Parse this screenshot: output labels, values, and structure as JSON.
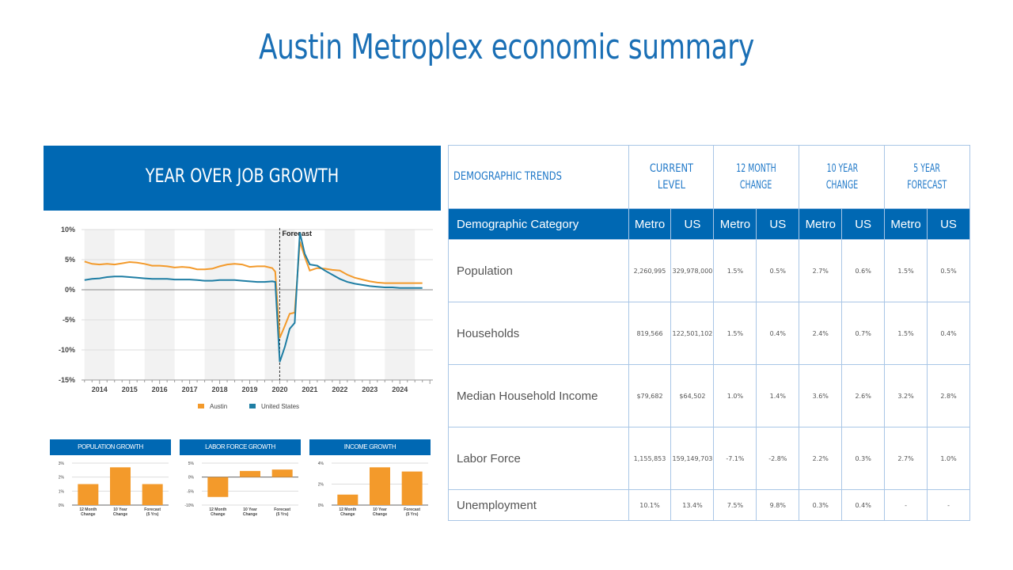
{
  "title": "Austin Metroplex economic summary",
  "chart_banner": "YEAR OVER JOB GROWTH",
  "chart_data": [
    {
      "type": "line",
      "title": "",
      "x": [
        2013.5,
        2013.75,
        2014,
        2014.25,
        2014.5,
        2014.75,
        2015,
        2015.25,
        2015.5,
        2015.75,
        2016,
        2016.25,
        2016.5,
        2016.75,
        2017,
        2017.25,
        2017.5,
        2017.75,
        2018,
        2018.25,
        2018.5,
        2018.75,
        2019,
        2019.25,
        2019.5,
        2019.75,
        2019.85,
        2020,
        2020.17,
        2020.33,
        2020.5,
        2020.67,
        2020.83,
        2021,
        2021.25,
        2021.5,
        2021.75,
        2022,
        2022.25,
        2022.5,
        2022.75,
        2023,
        2023.25,
        2023.5,
        2023.75,
        2024,
        2024.25,
        2024.5,
        2024.75
      ],
      "series": [
        {
          "name": "Austin",
          "color": "#f39a2b",
          "values": [
            4.7,
            4.3,
            4.2,
            4.3,
            4.2,
            4.4,
            4.6,
            4.5,
            4.3,
            4.0,
            4.0,
            3.9,
            3.7,
            3.8,
            3.7,
            3.4,
            3.4,
            3.5,
            3.9,
            4.2,
            4.3,
            4.2,
            3.8,
            3.9,
            3.9,
            3.6,
            3.0,
            -8.0,
            -6.0,
            -4.0,
            -3.8,
            8.0,
            5.5,
            3.2,
            3.6,
            3.5,
            3.3,
            3.2,
            2.5,
            2.0,
            1.7,
            1.4,
            1.2,
            1.1,
            1.1,
            1.1,
            1.1,
            1.1,
            1.1
          ]
        },
        {
          "name": "United States",
          "color": "#1f7ea4",
          "values": [
            1.6,
            1.8,
            1.9,
            2.1,
            2.2,
            2.2,
            2.1,
            2.0,
            1.9,
            1.8,
            1.8,
            1.8,
            1.7,
            1.7,
            1.7,
            1.6,
            1.5,
            1.5,
            1.6,
            1.6,
            1.6,
            1.5,
            1.4,
            1.3,
            1.3,
            1.4,
            1.3,
            -12.0,
            -9.5,
            -6.5,
            -5.5,
            9.5,
            6.0,
            4.2,
            4.0,
            3.2,
            2.5,
            1.8,
            1.3,
            1.0,
            0.8,
            0.6,
            0.5,
            0.4,
            0.4,
            0.3,
            0.3,
            0.3,
            0.3
          ]
        }
      ],
      "ylim": [
        -15,
        10
      ],
      "yticks": [
        "10%",
        "5%",
        "0%",
        "-5%",
        "-10%",
        "-15%"
      ],
      "ytick_values": [
        10,
        5,
        0,
        -5,
        -10,
        -15
      ],
      "xticks": [
        "2014",
        "2015",
        "2016",
        "2017",
        "2018",
        "2019",
        "2020",
        "2021",
        "2022",
        "2023",
        "2024"
      ],
      "xtick_values": [
        2014,
        2015,
        2016,
        2017,
        2018,
        2019,
        2020,
        2021,
        2022,
        2023,
        2024
      ],
      "xlim": [
        2013.4,
        2025.1
      ],
      "annotation": "Forecast",
      "annotation_x": 2020,
      "legend": [
        "Austin",
        "United States"
      ]
    },
    {
      "type": "bar",
      "title": "POPULATION GROWTH",
      "categories": [
        [
          "12 Month",
          "Change"
        ],
        [
          "10 Year",
          "Change"
        ],
        [
          "Forecast",
          "(5 Yrs)"
        ]
      ],
      "values": [
        1.5,
        2.7,
        1.5
      ],
      "ylim": [
        0,
        3
      ],
      "yticks": [
        "3%",
        "2%",
        "1%",
        "0%"
      ],
      "ytick_values": [
        3,
        2,
        1,
        0
      ],
      "color": "#f39a2b"
    },
    {
      "type": "bar",
      "title": "LABOR FORCE GROWTH",
      "categories": [
        [
          "12 Month",
          "Change"
        ],
        [
          "10 Year",
          "Change"
        ],
        [
          "Forecast",
          "(5 Yrs)"
        ]
      ],
      "values": [
        -7.1,
        2.2,
        2.7
      ],
      "ylim": [
        -10,
        5
      ],
      "yticks": [
        "5%",
        "0%",
        "-5%",
        "-10%"
      ],
      "ytick_values": [
        5,
        0,
        -5,
        -10
      ],
      "color": "#f39a2b"
    },
    {
      "type": "bar",
      "title": "INCOME GROWTH",
      "categories": [
        [
          "12 Month",
          "Change"
        ],
        [
          "10 Year",
          "Change"
        ],
        [
          "Forecast",
          "(5 Yrs)"
        ]
      ],
      "values": [
        1.0,
        3.6,
        3.2
      ],
      "ylim": [
        0,
        4
      ],
      "yticks": [
        "4%",
        "2%",
        "0%"
      ],
      "ytick_values": [
        4,
        2,
        0
      ],
      "color": "#f39a2b"
    }
  ],
  "table": {
    "top_headers": [
      "DEMOGRAPHIC TRENDS",
      "CURRENT LEVEL",
      "12 MONTH CHANGE",
      "10 YEAR CHANGE",
      "5 YEAR FORECAST"
    ],
    "top_headers_lines": [
      [
        "DEMOGRAPHIC TRENDS"
      ],
      [
        "CURRENT LEVEL"
      ],
      [
        "12 MONTH",
        "CHANGE"
      ],
      [
        "10 YEAR",
        "CHANGE"
      ],
      [
        "5 YEAR",
        "FORECAST"
      ]
    ],
    "columns": [
      "Demographic Category",
      "Metro",
      "US",
      "Metro",
      "US",
      "Metro",
      "US",
      "Metro",
      "US"
    ],
    "rows": [
      {
        "label": "Population",
        "cells": [
          "2,260,995",
          "329,978,000",
          "1.5%",
          "0.5%",
          "2.7%",
          "0.6%",
          "1.5%",
          "0.5%"
        ]
      },
      {
        "label": "Households",
        "cells": [
          "819,566",
          "122,501,102",
          "1.5%",
          "0.4%",
          "2.4%",
          "0.7%",
          "1.5%",
          "0.4%"
        ]
      },
      {
        "label": "Median Household Income",
        "cells": [
          "$79,682",
          "$64,502",
          "1.0%",
          "1.4%",
          "3.6%",
          "2.6%",
          "3.2%",
          "2.8%"
        ]
      },
      {
        "label": "Labor Force",
        "cells": [
          "1,155,853",
          "159,149,703",
          "-7.1%",
          "-2.8%",
          "2.2%",
          "0.3%",
          "2.7%",
          "1.0%"
        ]
      },
      {
        "label": "Unemployment",
        "cells": [
          "10.1%",
          "13.4%",
          "7.5%",
          "9.8%",
          "0.3%",
          "0.4%",
          "-",
          "-"
        ]
      }
    ],
    "negative_color": "#e07b1e"
  }
}
